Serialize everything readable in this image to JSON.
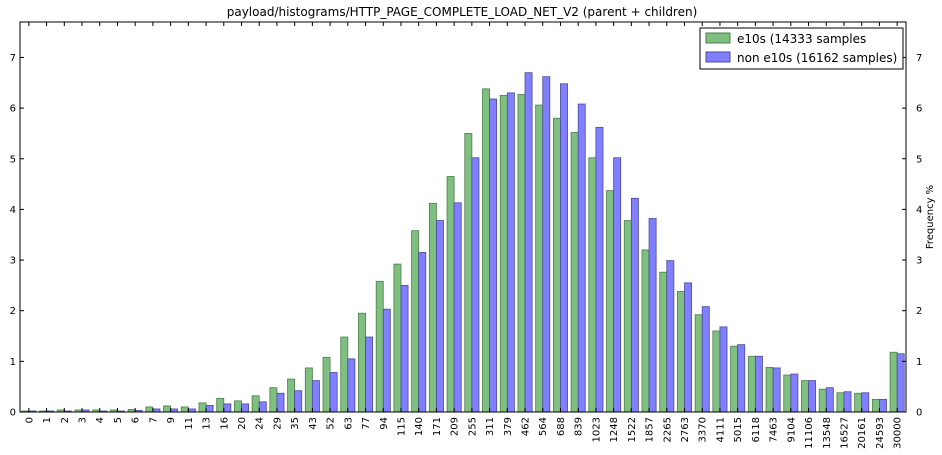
{
  "chart_data": {
    "type": "bar",
    "title": "payload/histograms/HTTP_PAGE_COMPLETE_LOAD_NET_V2 (parent + children)",
    "xlabel": "",
    "ylabel": "Frequency %",
    "ylim": [
      0,
      7.7
    ],
    "yticks": [
      0,
      1,
      2,
      3,
      4,
      5,
      6,
      7
    ],
    "grid": false,
    "legend_position": "top-right",
    "categories": [
      "0",
      "1",
      "2",
      "3",
      "4",
      "5",
      "6",
      "7",
      "9",
      "11",
      "13",
      "16",
      "20",
      "24",
      "29",
      "35",
      "43",
      "52",
      "63",
      "77",
      "94",
      "115",
      "140",
      "171",
      "209",
      "255",
      "311",
      "379",
      "462",
      "564",
      "688",
      "839",
      "1023",
      "1248",
      "1522",
      "1857",
      "2265",
      "2763",
      "3370",
      "4111",
      "5015",
      "6118",
      "7463",
      "9104",
      "11106",
      "13548",
      "16527",
      "20161",
      "24593",
      "30000"
    ],
    "series": [
      {
        "name": "e10s (14333 samples",
        "color": "#7fbf7f",
        "edge": "#4c7f4c",
        "values": [
          0.02,
          0.02,
          0.04,
          0.04,
          0.04,
          0.04,
          0.05,
          0.1,
          0.12,
          0.1,
          0.18,
          0.27,
          0.22,
          0.32,
          0.48,
          0.65,
          0.87,
          1.08,
          1.48,
          1.95,
          2.58,
          2.92,
          3.58,
          4.12,
          4.65,
          5.5,
          6.38,
          6.25,
          6.27,
          6.06,
          5.8,
          5.52,
          5.02,
          4.37,
          3.78,
          3.2,
          2.76,
          2.38,
          1.92,
          1.6,
          1.3,
          1.1,
          0.88,
          0.73,
          0.62,
          0.45,
          0.38,
          0.37,
          0.25,
          1.18
        ]
      },
      {
        "name": "non e10s (16162 samples)",
        "color": "#7f7fff",
        "edge": "#4c4c99",
        "values": [
          0.02,
          0.02,
          0.02,
          0.04,
          0.02,
          0.02,
          0.03,
          0.06,
          0.06,
          0.06,
          0.13,
          0.16,
          0.16,
          0.2,
          0.37,
          0.42,
          0.62,
          0.78,
          1.05,
          1.48,
          2.03,
          2.5,
          3.15,
          3.78,
          4.13,
          5.02,
          6.18,
          6.3,
          6.7,
          6.62,
          6.48,
          6.08,
          5.62,
          5.02,
          4.22,
          3.82,
          2.99,
          2.55,
          2.08,
          1.68,
          1.33,
          1.1,
          0.87,
          0.75,
          0.62,
          0.48,
          0.4,
          0.38,
          0.25,
          1.15
        ]
      }
    ]
  }
}
